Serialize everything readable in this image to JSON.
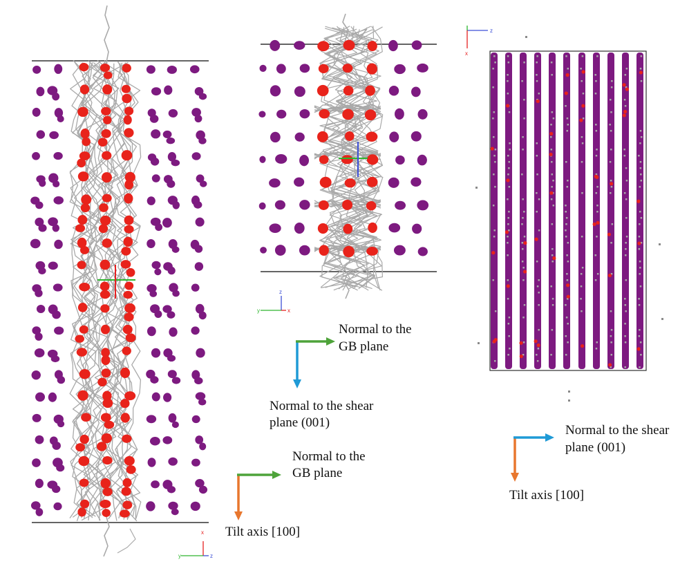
{
  "colors": {
    "gb_atom": "#e8231b",
    "bulk_atom": "#7d1a80",
    "network": "#a9a9a9",
    "box_edge": "#303030",
    "arrow_gb_normal": "#4ea33a",
    "arrow_tilt_axis": "#e8772e",
    "arrow_shear_normal": "#1f9ad6",
    "triad_x": "#e62020",
    "triad_y": "#2db52d",
    "triad_z": "#3c4fd6"
  },
  "panels": [
    {
      "name": "left-panel",
      "triad": {
        "up": "x",
        "left": "y",
        "right": "z"
      },
      "legend": [
        {
          "label": "Normal to the GB plane",
          "lines": [
            "Normal to the",
            "GB plane"
          ],
          "color_key": "arrow_gb_normal",
          "icon": "arrow-right-icon"
        },
        {
          "label": "Tilt axis [100]",
          "lines": [
            "Tilt axis [100]"
          ],
          "color_key": "arrow_tilt_axis",
          "icon": "arrow-down-icon"
        }
      ]
    },
    {
      "name": "middle-panel",
      "triad": {
        "up": "z",
        "left": "y",
        "right": "x"
      },
      "legend": [
        {
          "label": "Normal to the GB plane",
          "lines": [
            "Normal to the",
            "GB plane"
          ],
          "color_key": "arrow_gb_normal",
          "icon": "arrow-right-icon"
        },
        {
          "label": "Normal to the shear plane (001)",
          "lines": [
            "Normal to the shear",
            "plane (001)"
          ],
          "color_key": "arrow_shear_normal",
          "icon": "arrow-down-icon"
        }
      ]
    },
    {
      "name": "right-panel",
      "triad": {
        "right": "z",
        "down": "x"
      },
      "legend": [
        {
          "label": "Normal to the shear plane (001)",
          "lines": [
            "Normal to the shear",
            "plane (001)"
          ],
          "color_key": "arrow_shear_normal",
          "icon": "arrow-right-icon"
        },
        {
          "label": "Tilt axis [100]",
          "lines": [
            "Tilt axis [100]"
          ],
          "color_key": "arrow_tilt_axis",
          "icon": "arrow-down-icon"
        }
      ]
    }
  ]
}
